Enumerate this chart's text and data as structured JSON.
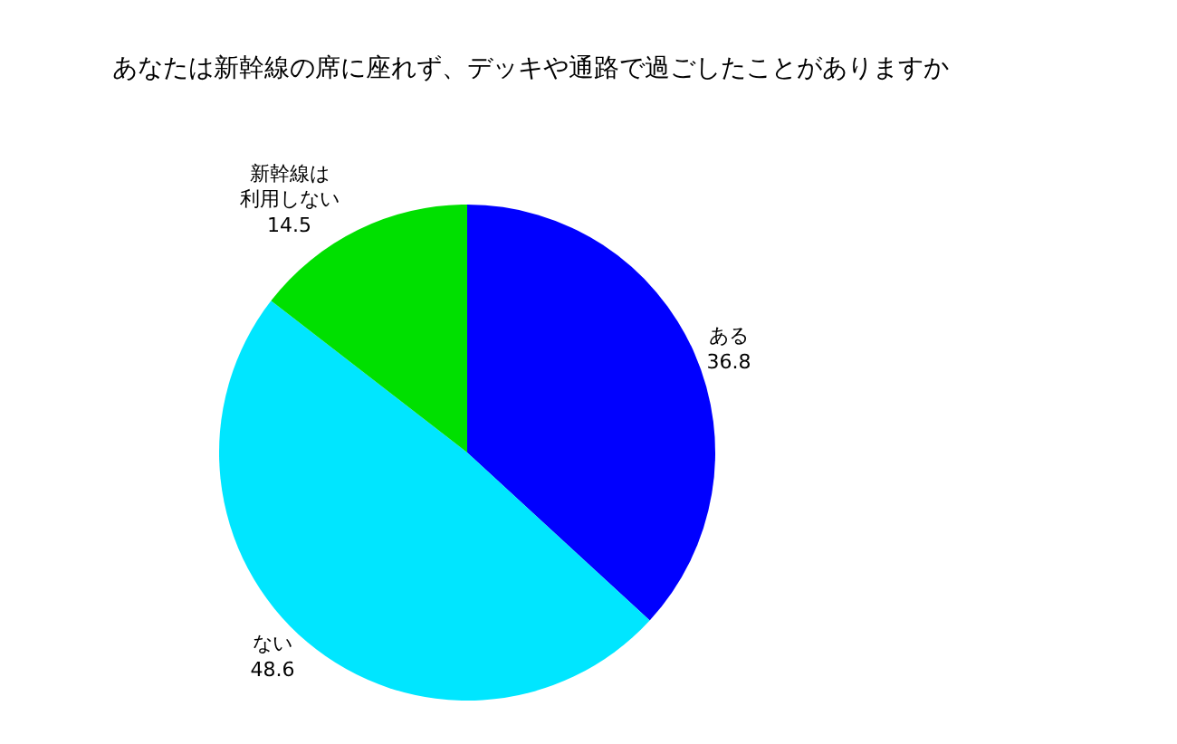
{
  "chart_data": {
    "type": "pie",
    "title": "あなたは新幹線の席に座れず、デッキや通路で過ごしたことがありますか",
    "categories": [
      "ある",
      "ない",
      "新幹線は利用しない"
    ],
    "values": [
      36.8,
      48.6,
      14.5
    ],
    "colors": [
      "#0000ff",
      "#00e6ff",
      "#00e000"
    ],
    "data_labels": true,
    "legend": false
  }
}
